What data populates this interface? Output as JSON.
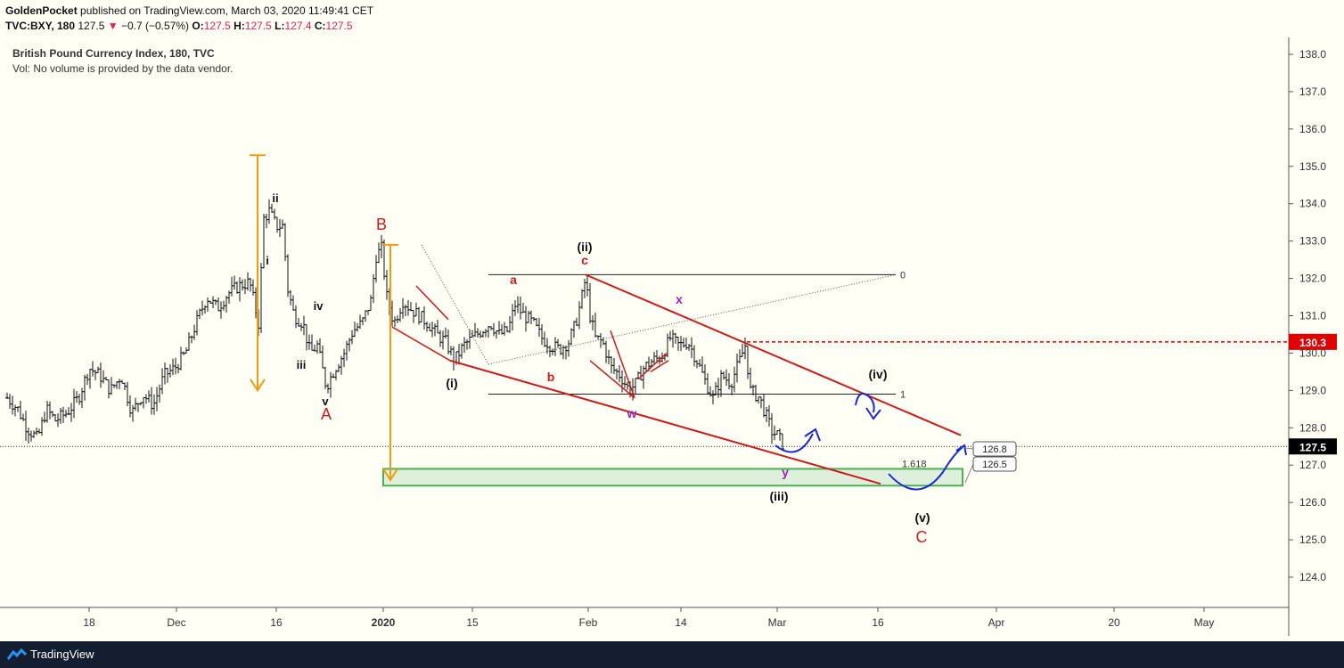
{
  "header": {
    "author": "GoldenPocket",
    "published": "published on TradingView.com, March 03, 2020 11:49:41 CET",
    "symbol": "TVC:BXY, 180",
    "last": "127.5",
    "arrow": "▼",
    "change": "−0.7 (−0.57%)",
    "o_label": "O:",
    "o_val": "127.5",
    "h_label": "H:",
    "h_val": "127.5",
    "l_label": "L:",
    "l_val": "127.4",
    "c_label": "C:",
    "c_val": "127.5"
  },
  "info": {
    "title": "British Pound Currency Index, 180, TVC",
    "vol": "Vol: No volume is provided by the data vendor."
  },
  "footer": {
    "brand": "TradingView"
  },
  "colors": {
    "background": "#fffff6",
    "wave_red": "#cc1b1b",
    "orange": "#f39c12",
    "blue": "#1a27d6",
    "purple": "#9c27b0",
    "green_zone": "#4caf50",
    "price_tag": "#e00000"
  },
  "chart_data": {
    "type": "bar",
    "ylim": [
      123.2,
      138.5
    ],
    "y_ticks": [
      124.0,
      125.0,
      126.0,
      127.0,
      128.0,
      129.0,
      130.0,
      131.0,
      132.0,
      133.0,
      134.0,
      135.0,
      136.0,
      137.0,
      138.0
    ],
    "x_ticks": [
      {
        "label": "18",
        "x": 100,
        "bold": false
      },
      {
        "label": "Dec",
        "x": 198,
        "bold": false
      },
      {
        "label": "16",
        "x": 310,
        "bold": false
      },
      {
        "label": "2020",
        "x": 430,
        "bold": true
      },
      {
        "label": "15",
        "x": 530,
        "bold": false
      },
      {
        "label": "Feb",
        "x": 660,
        "bold": false
      },
      {
        "label": "14",
        "x": 764,
        "bold": false
      },
      {
        "label": "Mar",
        "x": 872,
        "bold": false
      },
      {
        "label": "16",
        "x": 985,
        "bold": false
      },
      {
        "label": "Apr",
        "x": 1118,
        "bold": false
      },
      {
        "label": "20",
        "x": 1250,
        "bold": false
      },
      {
        "label": "May",
        "x": 1351,
        "bold": false
      }
    ],
    "price_path": [
      [
        8,
        128.8
      ],
      [
        20,
        128.5
      ],
      [
        30,
        128.0
      ],
      [
        42,
        127.7
      ],
      [
        52,
        128.5
      ],
      [
        62,
        128.2
      ],
      [
        75,
        128.4
      ],
      [
        88,
        128.8
      ],
      [
        100,
        129.6
      ],
      [
        112,
        129.4
      ],
      [
        124,
        129.0
      ],
      [
        136,
        129.4
      ],
      [
        148,
        128.4
      ],
      [
        160,
        128.9
      ],
      [
        172,
        128.6
      ],
      [
        184,
        129.4
      ],
      [
        196,
        129.6
      ],
      [
        208,
        130.0
      ],
      [
        220,
        130.8
      ],
      [
        232,
        131.5
      ],
      [
        244,
        131.2
      ],
      [
        256,
        131.6
      ],
      [
        268,
        131.8
      ],
      [
        280,
        131.9
      ],
      [
        290,
        130.8
      ],
      [
        296,
        133.6
      ],
      [
        302,
        133.8
      ],
      [
        310,
        133.4
      ],
      [
        318,
        133.4
      ],
      [
        322,
        131.8
      ],
      [
        330,
        131.0
      ],
      [
        340,
        130.8
      ],
      [
        348,
        130.0
      ],
      [
        356,
        130.2
      ],
      [
        366,
        129.1
      ],
      [
        376,
        129.6
      ],
      [
        386,
        130.0
      ],
      [
        396,
        130.6
      ],
      [
        406,
        130.8
      ],
      [
        416,
        131.4
      ],
      [
        422,
        132.6
      ],
      [
        428,
        132.8
      ],
      [
        434,
        131.5
      ],
      [
        442,
        130.8
      ],
      [
        452,
        131.4
      ],
      [
        460,
        131.2
      ],
      [
        470,
        131.0
      ],
      [
        480,
        130.8
      ],
      [
        490,
        130.5
      ],
      [
        500,
        130.3
      ],
      [
        510,
        129.8
      ],
      [
        520,
        130.2
      ],
      [
        530,
        130.4
      ],
      [
        540,
        130.6
      ],
      [
        550,
        130.8
      ],
      [
        560,
        130.5
      ],
      [
        570,
        130.6
      ],
      [
        578,
        131.3
      ],
      [
        588,
        131.0
      ],
      [
        598,
        130.8
      ],
      [
        608,
        130.4
      ],
      [
        618,
        130.2
      ],
      [
        628,
        130.1
      ],
      [
        638,
        130.3
      ],
      [
        646,
        130.8
      ],
      [
        652,
        131.4
      ],
      [
        657,
        132.0
      ],
      [
        662,
        131.0
      ],
      [
        668,
        130.4
      ],
      [
        676,
        130.3
      ],
      [
        686,
        129.6
      ],
      [
        696,
        129.4
      ],
      [
        706,
        129.0
      ],
      [
        714,
        129.2
      ],
      [
        722,
        129.6
      ],
      [
        732,
        129.8
      ],
      [
        742,
        129.9
      ],
      [
        752,
        130.4
      ],
      [
        762,
        130.2
      ],
      [
        772,
        130.3
      ],
      [
        782,
        129.8
      ],
      [
        792,
        129.2
      ],
      [
        800,
        128.8
      ],
      [
        810,
        129.4
      ],
      [
        820,
        129.2
      ],
      [
        830,
        129.8
      ],
      [
        836,
        130.2
      ],
      [
        842,
        129.0
      ],
      [
        852,
        128.8
      ],
      [
        860,
        128.3
      ],
      [
        866,
        127.9
      ],
      [
        872,
        127.8
      ],
      [
        880,
        127.5
      ]
    ],
    "fib_levels": [
      {
        "label": "0",
        "price": 132.1
      },
      {
        "label": "1",
        "price": 128.9
      },
      {
        "label": "1.618",
        "price": 126.9
      }
    ],
    "price_line": "127.5",
    "level_line": "130.3",
    "callouts": [
      "126.8",
      "126.5"
    ],
    "wave_labels": {
      "B": "B",
      "A": "A",
      "C": "C",
      "ii_small": "ii",
      "i_small": "i",
      "iv_small": "iv",
      "iii_small": "iii",
      "v_small": "v",
      "ii_big": "(ii)",
      "i_big": "(i)",
      "iii_big": "(iii)",
      "iv_big": "(iv)",
      "v_big": "(v)",
      "a_small": "a",
      "b_small": "b",
      "c_small": "c",
      "w": "w",
      "x": "x",
      "y": "y"
    }
  }
}
